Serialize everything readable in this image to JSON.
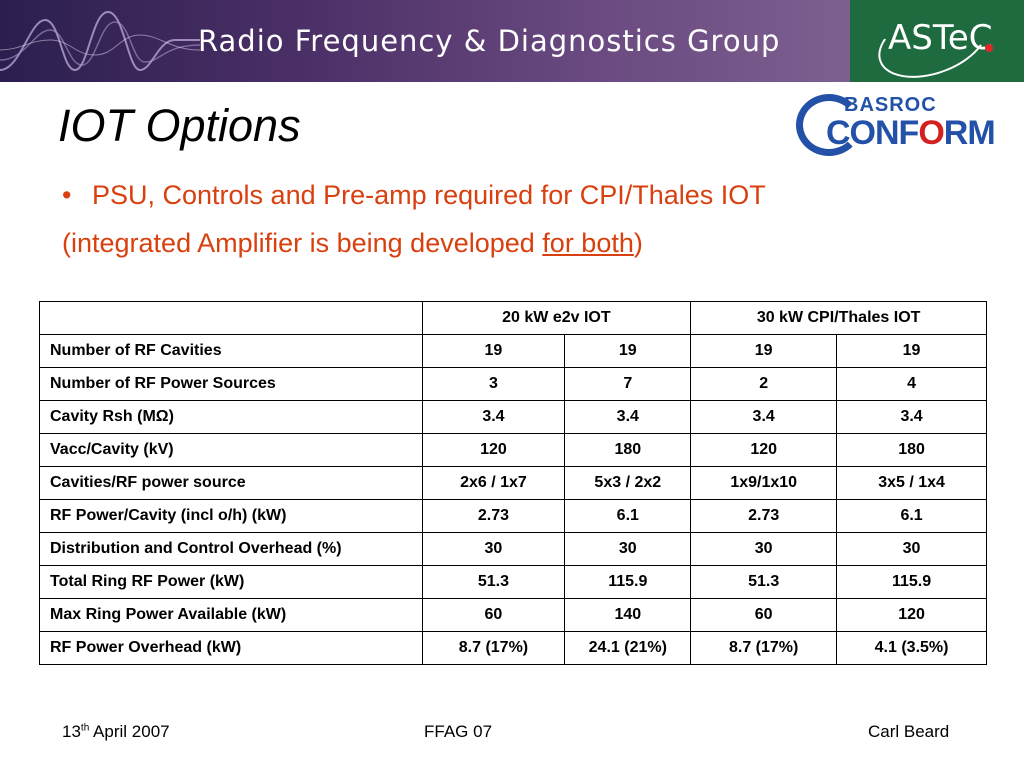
{
  "header": {
    "banner_title": "Radio Frequency & Diagnostics Group",
    "astec_logo": "ASTeC",
    "conform_logo": {
      "top": "BASROC",
      "main_a": "CONF",
      "main_b": "O",
      "main_c": "RM"
    }
  },
  "slide": {
    "title": "IOT Options",
    "bullet_mark": "•",
    "bullet": "PSU, Controls and Pre-amp required for CPI/Thales IOT",
    "sub_prefix": "(integrated Amplifier is being developed ",
    "sub_underlined": "for both",
    "sub_suffix": ")"
  },
  "table": {
    "headers": [
      "",
      "20 kW e2v IOT",
      "30 kW CPI/Thales IOT"
    ],
    "rows": [
      [
        "Number of RF Cavities",
        "19",
        "19",
        "19",
        "19"
      ],
      [
        "Number of RF Power Sources",
        "3",
        "7",
        "2",
        "4"
      ],
      [
        "Cavity Rsh (MΩ)",
        "3.4",
        "3.4",
        "3.4",
        "3.4"
      ],
      [
        "Vacc/Cavity (kV)",
        "120",
        "180",
        "120",
        "180"
      ],
      [
        "Cavities/RF power source",
        "2x6 / 1x7",
        "5x3 / 2x2",
        "1x9/1x10",
        "3x5 / 1x4"
      ],
      [
        "RF Power/Cavity (incl o/h) (kW)",
        "2.73",
        "6.1",
        "2.73",
        "6.1"
      ],
      [
        "Distribution and Control Overhead (%)",
        "30",
        "30",
        "30",
        "30"
      ],
      [
        "Total Ring RF Power (kW)",
        "51.3",
        "115.9",
        "51.3",
        "115.9"
      ],
      [
        "Max Ring Power Available (kW)",
        "60",
        "140",
        "60",
        "120"
      ],
      [
        "RF Power Overhead (kW)",
        "8.7 (17%)",
        "24.1 (21%)",
        "8.7 (17%)",
        "4.1 (3.5%)"
      ]
    ]
  },
  "footer": {
    "date_day": "13",
    "date_sup": "th",
    "date_rest": " April 2007",
    "center": "FFAG 07",
    "author": "Carl Beard"
  }
}
